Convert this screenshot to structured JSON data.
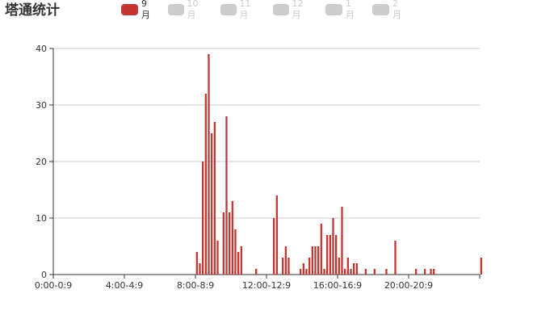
{
  "title": "塔通统计",
  "legend": [
    {
      "label": "9月",
      "active": true
    },
    {
      "label": "10月",
      "active": false
    },
    {
      "label": "11月",
      "active": false
    },
    {
      "label": "12月",
      "active": false
    },
    {
      "label": "1月",
      "active": false
    },
    {
      "label": "2月",
      "active": false
    }
  ],
  "colors": {
    "active_series": "#c23531",
    "inactive": "#cccccc",
    "active_text": "#333333",
    "inactive_text": "#cccccc",
    "grid": "#cccccc",
    "axis": "#333333"
  },
  "chart_data": {
    "type": "bar",
    "title": "塔通统计",
    "xlabel": "",
    "ylabel": "",
    "ylim": [
      0,
      40
    ],
    "y_ticks": [
      0,
      10,
      20,
      30,
      40
    ],
    "x_tick_labels": [
      "0:00-0:9",
      "4:00-4:9",
      "8:00-8:9",
      "12:00-12:9",
      "16:00-16:9",
      "20:00-20:9"
    ],
    "category_count": 144,
    "x_label_interval": 24,
    "grid": true,
    "series": [
      {
        "name": "9月",
        "values": [
          0,
          0,
          0,
          0,
          0,
          0,
          0,
          0,
          0,
          0,
          0,
          0,
          0,
          0,
          0,
          0,
          0,
          0,
          0,
          0,
          0,
          0,
          0,
          0,
          0,
          0,
          0,
          0,
          0,
          0,
          0,
          0,
          0,
          0,
          0,
          0,
          0,
          0,
          0,
          0,
          0,
          0,
          0,
          0,
          0,
          0,
          0,
          0,
          4,
          2,
          20,
          32,
          39,
          25,
          27,
          6,
          0,
          11,
          28,
          11,
          13,
          8,
          4,
          5,
          0,
          0,
          0,
          0,
          1,
          0,
          0,
          0,
          0,
          0,
          10,
          14,
          0,
          3,
          5,
          3,
          0,
          0,
          0,
          1,
          2,
          1,
          3,
          5,
          5,
          5,
          9,
          1,
          7,
          7,
          10,
          7,
          3,
          12,
          1,
          3,
          1,
          2,
          2,
          0,
          0,
          1,
          0,
          0,
          1,
          0,
          0,
          0,
          1,
          0,
          0,
          6,
          0,
          0,
          0,
          0,
          0,
          0,
          1,
          0,
          0,
          1,
          0,
          1,
          1,
          0,
          0,
          0,
          0,
          0,
          0,
          0,
          0,
          0,
          0,
          0,
          0,
          0,
          0,
          0,
          3,
          0
        ]
      }
    ]
  }
}
